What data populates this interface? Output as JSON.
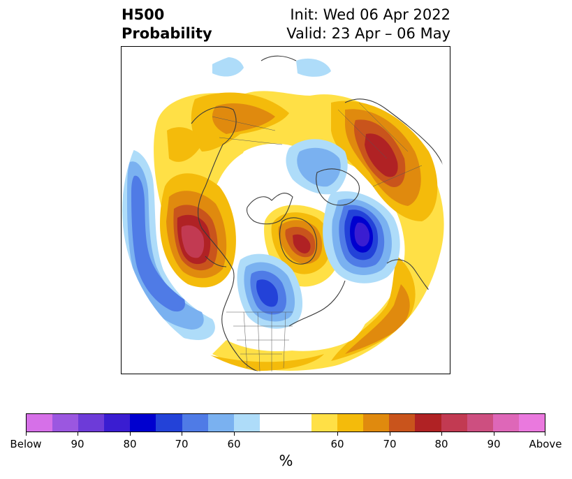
{
  "title": {
    "left_line1": "H500",
    "left_line2": "Probability",
    "right_line1": "Init: Wed 06 Apr 2022",
    "right_line2": "Valid: 23 Apr – 06 May"
  },
  "colorbar": {
    "unit": "%",
    "colors": [
      "#d670e8",
      "#9b57e0",
      "#6d3bd8",
      "#3a1dd1",
      "#0000cf",
      "#2342d8",
      "#4f7be6",
      "#7ab1f0",
      "#aedcf9",
      "#ffffff",
      "#ffffff",
      "#ffe046",
      "#f4bb0b",
      "#e08a0e",
      "#c9541c",
      "#b02224",
      "#c23a52",
      "#cd4f80",
      "#de67b8",
      "#ea79de"
    ],
    "tick_labels": [
      "Below",
      "90",
      "80",
      "70",
      "60",
      "60",
      "70",
      "80",
      "90",
      "Above"
    ]
  },
  "map": {
    "projection": "north-polar-stereographic",
    "anomalies": [
      {
        "region": "Eastern Pacific / Gulf of Alaska",
        "sign": "above",
        "peak": "90"
      },
      {
        "region": "Greenland",
        "sign": "above",
        "peak": "80"
      },
      {
        "region": "Western Russia",
        "sign": "above",
        "peak": "80"
      },
      {
        "region": "Northern Atlantic / Norwegian Sea",
        "sign": "below",
        "peak": "80"
      },
      {
        "region": "Central Canada",
        "sign": "below",
        "peak": "70"
      },
      {
        "region": "Eastern Siberia",
        "sign": "below",
        "peak": "60"
      },
      {
        "region": "Central Pacific",
        "sign": "below",
        "peak": "70"
      },
      {
        "region": "Siberia / Arctic rim",
        "sign": "above",
        "peak": "70"
      }
    ]
  }
}
